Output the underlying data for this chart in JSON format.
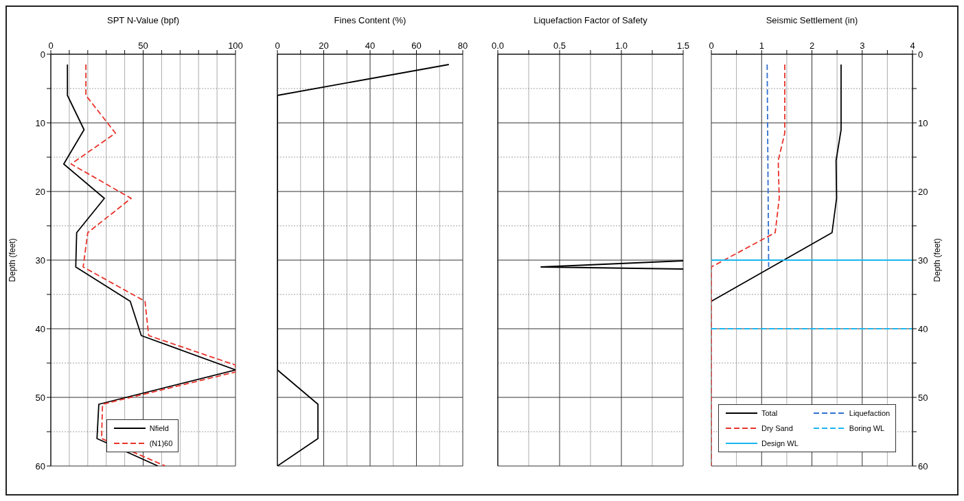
{
  "chart_data": [
    {
      "type": "line",
      "title": "SPT N-Value (bpf)",
      "ylabel": "Depth (feet)",
      "xlim": [
        0,
        100
      ],
      "xticks": [
        0,
        {
          "value": 10,
          "label": null
        },
        {
          "value": 20,
          "label": null
        },
        {
          "value": 30,
          "label": null
        },
        {
          "value": 40,
          "label": null
        },
        50,
        {
          "value": 60,
          "label": null
        },
        {
          "value": 70,
          "label": null
        },
        {
          "value": 80,
          "label": null
        },
        {
          "value": 90,
          "label": null
        },
        100
      ],
      "ylim": [
        60,
        0
      ],
      "yticks": [
        0,
        {
          "value": 5,
          "label": null
        },
        10,
        {
          "value": 15,
          "label": null
        },
        20,
        {
          "value": 25,
          "label": null
        },
        30,
        {
          "value": 35,
          "label": null
        },
        40,
        {
          "value": 45,
          "label": null
        },
        50,
        {
          "value": 55,
          "label": null
        },
        60
      ],
      "grid": true,
      "legend": "bottom",
      "series": [
        {
          "name": "Nfield",
          "color": "#000000",
          "line_style": "solid",
          "x": [
            9,
            9,
            18,
            7,
            29,
            14,
            13.5,
            43,
            49,
            100,
            26,
            25,
            58
          ],
          "values": [
            1.5,
            6,
            11,
            16,
            21,
            26,
            31,
            36,
            41,
            46,
            51,
            56,
            60
          ]
        },
        {
          "name": "(N1)60",
          "color": "#e8322a",
          "line_style": "dashed",
          "x": [
            19,
            19,
            35,
            11,
            43.5,
            20,
            17.5,
            51,
            53,
            100,
            100,
            28,
            27.5,
            62
          ],
          "values": [
            1.5,
            6,
            11.5,
            16,
            21,
            26,
            31,
            36,
            41,
            45.3,
            46.3,
            51,
            56,
            60
          ]
        }
      ]
    },
    {
      "type": "line",
      "title": "Fines Content (%)",
      "tick_labels": "x",
      "xlim": [
        0,
        80
      ],
      "xticks": [
        0,
        {
          "value": 10,
          "label": null
        },
        20,
        {
          "value": 30,
          "label": null
        },
        40,
        {
          "value": 50,
          "label": null
        },
        60,
        {
          "value": 70,
          "label": null
        },
        80
      ],
      "ylim": [
        60,
        0
      ],
      "yticks": [
        0,
        {
          "value": 5,
          "label": null
        },
        10,
        {
          "value": 15,
          "label": null
        },
        20,
        {
          "value": 25,
          "label": null
        },
        30,
        {
          "value": 35,
          "label": null
        },
        40,
        {
          "value": 45,
          "label": null
        },
        50,
        {
          "value": 55,
          "label": null
        },
        60
      ],
      "grid": true,
      "series": [
        {
          "color": "#000000",
          "line_style": "solid",
          "x": [
            74,
            0,
            null,
            0,
            17.5,
            17.5,
            0
          ],
          "values": [
            1.5,
            6,
            null,
            46,
            51,
            56,
            60
          ]
        }
      ]
    },
    {
      "type": "line",
      "title": "Liquefaction Factor of Safety",
      "tick_labels": "x",
      "xlim": [
        0,
        1.5
      ],
      "xticks": [
        {
          "value": 0,
          "label": "0.0"
        },
        {
          "value": 0.25,
          "label": null
        },
        0.5,
        {
          "value": 0.75,
          "label": null
        },
        {
          "value": 1,
          "label": "1.0"
        },
        {
          "value": 1.25,
          "label": null
        },
        1.5
      ],
      "ylim": [
        60,
        0
      ],
      "yticks": [
        0,
        {
          "value": 5,
          "label": null
        },
        10,
        {
          "value": 15,
          "label": null
        },
        20,
        {
          "value": 25,
          "label": null
        },
        30,
        {
          "value": 35,
          "label": null
        },
        40,
        {
          "value": 45,
          "label": null
        },
        50,
        {
          "value": 55,
          "label": null
        },
        60
      ],
      "grid": true,
      "series": [
        {
          "color": "#000000",
          "line_style": "solid",
          "x": [
            1.5,
            0.35,
            1.5
          ],
          "values": [
            30.1,
            31,
            31.3
          ]
        }
      ]
    },
    {
      "type": "line",
      "title": "Seismic Settlement (in)",
      "y2label": "Depth (feet)",
      "xlim": [
        0,
        4
      ],
      "xticks": [
        0,
        {
          "value": 0.5,
          "label": null
        },
        1,
        {
          "value": 1.5,
          "label": null
        },
        2,
        {
          "value": 2.5,
          "label": null
        },
        3,
        {
          "value": 3.5,
          "label": null
        },
        4
      ],
      "y2lim": [
        60,
        0
      ],
      "y2ticks": [
        0,
        {
          "value": 5,
          "label": null
        },
        10,
        {
          "value": 15,
          "label": null
        },
        20,
        {
          "value": 25,
          "label": null
        },
        30,
        {
          "value": 35,
          "label": null
        },
        40,
        {
          "value": 45,
          "label": null
        },
        50,
        {
          "value": 55,
          "label": null
        },
        60
      ],
      "grid": true,
      "legend": "bottom",
      "series": [
        {
          "name": "Total",
          "color": "#000000",
          "line_style": "solid",
          "axis": "y2",
          "x": [
            2.58,
            2.58,
            2.48,
            2.49,
            2.4,
            0
          ],
          "values": [
            1.5,
            11,
            15.5,
            21,
            26,
            36
          ]
        },
        {
          "name": "Liquefaction",
          "color": "#2f6fd0",
          "line_style": "dashed",
          "axis": "y2",
          "x": [
            1.11,
            1.14
          ],
          "values": [
            1.5,
            31
          ]
        },
        {
          "name": "Dry Sand",
          "color": "#e8322a",
          "line_style": "dashed",
          "axis": "y2",
          "x": [
            1.46,
            1.46,
            1.33,
            1.35,
            1.27,
            0,
            0
          ],
          "values": [
            1.5,
            11.5,
            15.5,
            21,
            26,
            31,
            60
          ]
        },
        {
          "name": "Boring WL",
          "color": "#19b5f0",
          "line_style": "dashed",
          "axis": "y2",
          "x": [
            0,
            4
          ],
          "values": [
            40,
            40
          ]
        },
        {
          "name": "Design WL",
          "color": "#19b5f0",
          "line_style": "solid",
          "axis": "y2",
          "x": [
            0,
            4
          ],
          "values": [
            30,
            30
          ]
        }
      ]
    }
  ]
}
